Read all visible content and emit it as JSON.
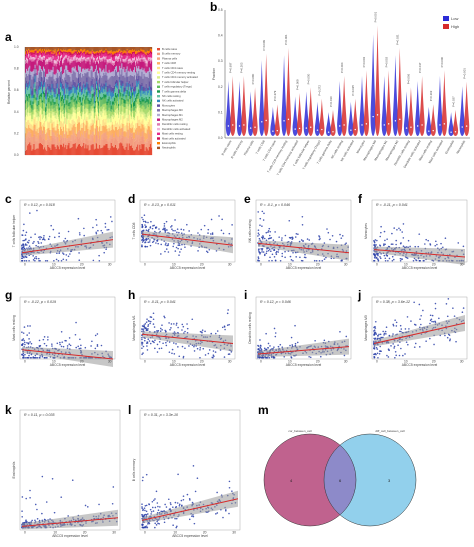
{
  "panels": {
    "a": {
      "label": "a",
      "legend": [
        "B cells naive",
        "B cells memory",
        "Plasma cells",
        "T cells CD8",
        "T cells CD4 naive",
        "T cells CD4 memory resting",
        "T cells CD4 memory activated",
        "T cells follicular helper",
        "T cells regulatory (Tregs)",
        "T cells gamma delta",
        "NK cells resting",
        "NK cells activated",
        "Monocytes",
        "Macrophages M0",
        "Macrophages M1",
        "Macrophages M2",
        "Dendritic cells resting",
        "Dendritic cells activated",
        "Mast cells resting",
        "Mast cells activated",
        "Eosinophils",
        "Neutrophils"
      ],
      "colors": [
        "#e64b35",
        "#f39b7f",
        "#f4a582",
        "#fdae61",
        "#fee08b",
        "#ffff99",
        "#d9ef8b",
        "#a6d96a",
        "#66bd63",
        "#1a9850",
        "#66c2a5",
        "#3288bd",
        "#5e4fa2",
        "#8073ac",
        "#b2abd2",
        "#c51b7d",
        "#de77ae",
        "#f1b6da",
        "#e7298a",
        "#ce1256",
        "#ff7f00",
        "#a65628"
      ]
    },
    "b": {
      "label": "b",
      "chart_data": {
        "type": "violin",
        "ylabel": "Fraction",
        "series": [
          {
            "name": "Low",
            "color": "#2b2bd6"
          },
          {
            "name": "High",
            "color": "#d62b2b"
          }
        ],
        "categories": [
          "B cells naive",
          "B cells memory",
          "Plasma cells",
          "T cells CD8",
          "T cells CD4 naive",
          "T cells CD4 memory resting",
          "T cells CD4 memory activated",
          "T cells follicular helper",
          "T cells regulatory (Tregs)",
          "T cells gamma delta",
          "NK cells resting",
          "NK cells activated",
          "Monocytes",
          "Macrophages M0",
          "Macrophages M1",
          "Macrophages M2",
          "Dendritic cells resting",
          "Dendritic cells activated",
          "Mast cells resting",
          "Mast cells activated",
          "Eosinophils",
          "Neutrophils"
        ],
        "pvalues": [
          "P=0.697",
          "P=0.203",
          "P=0.080",
          "P=0.009",
          "P=0.379",
          "P=0.001",
          "P=0.009",
          "P=0.050",
          "P=0.272",
          "P=0.010",
          "P=0.004",
          "P=0.035",
          "P=0.003",
          "P<0.001",
          "P=0.003",
          "P=0.031",
          "P=0.006",
          "P=0.017",
          "P=0.103",
          "P=0.000",
          "P=0.037",
          "P=0.001"
        ]
      }
    },
    "c": {
      "label": "c",
      "chart_data": {
        "type": "scatter",
        "ylabel": "T cells follicular helper",
        "xlabel": "ABCC5 expression level",
        "stat": "R = 0.12, p = 0.018",
        "slope": 0.35
      }
    },
    "d": {
      "label": "d",
      "chart_data": {
        "type": "scatter",
        "ylabel": "T cells CD8",
        "xlabel": "ABCC5 expression level",
        "stat": "R = -0.13, p = 0.011",
        "slope": -0.3
      }
    },
    "e": {
      "label": "e",
      "chart_data": {
        "type": "scatter",
        "ylabel": "NK cells resting",
        "xlabel": "ABCC5 expression level",
        "stat": "R = -0.1, p = 0.046",
        "slope": -0.25
      }
    },
    "f": {
      "label": "f",
      "chart_data": {
        "type": "scatter",
        "ylabel": "Monocytes",
        "xlabel": "ABCC5 expression level",
        "stat": "R = -0.11, p = 0.041",
        "slope": -0.2
      }
    },
    "g": {
      "label": "g",
      "chart_data": {
        "type": "scatter",
        "ylabel": "Mast cells resting",
        "xlabel": "ABCC5 expression level",
        "stat": "R = -0.12, p = 0.019",
        "slope": -0.25
      }
    },
    "h": {
      "label": "h",
      "chart_data": {
        "type": "scatter",
        "ylabel": "Macrophages M1",
        "xlabel": "ABCC5 expression level",
        "stat": "R = -0.11, p = 0.041",
        "slope": -0.25
      }
    },
    "i": {
      "label": "i",
      "chart_data": {
        "type": "scatter",
        "ylabel": "Dendritic cells resting",
        "xlabel": "ABCC5 expression level",
        "stat": "R = 0.12, p = 0.046",
        "slope": 0.2
      }
    },
    "j": {
      "label": "j",
      "chart_data": {
        "type": "scatter",
        "ylabel": "Macrophages M0",
        "xlabel": "ABCC5 expression level",
        "stat": "R = 0.38, p = 3.6e-12",
        "slope": 0.55
      }
    },
    "k": {
      "label": "k",
      "chart_data": {
        "type": "scatter",
        "ylabel": "Eosinophils",
        "xlabel": "ABCC5 expression level",
        "stat": "R = 0.11, p = 0.035",
        "slope": 0.12
      }
    },
    "l": {
      "label": "l",
      "chart_data": {
        "type": "scatter",
        "ylabel": "B cells memory",
        "xlabel": "ABCC5 expression level",
        "stat": "R = 0.31, p = 3.3e-10",
        "slope": 0.3
      }
    },
    "m": {
      "label": "m",
      "chart_data": {
        "type": "venn",
        "sets": [
          {
            "name": "cor_between_cell",
            "color": "#b5477a"
          },
          {
            "name": "diff_cell_between_cell",
            "color": "#6ec0e6"
          }
        ],
        "counts": {
          "left_only": "4",
          "overlap": "6",
          "right_only": "3"
        }
      }
    }
  }
}
